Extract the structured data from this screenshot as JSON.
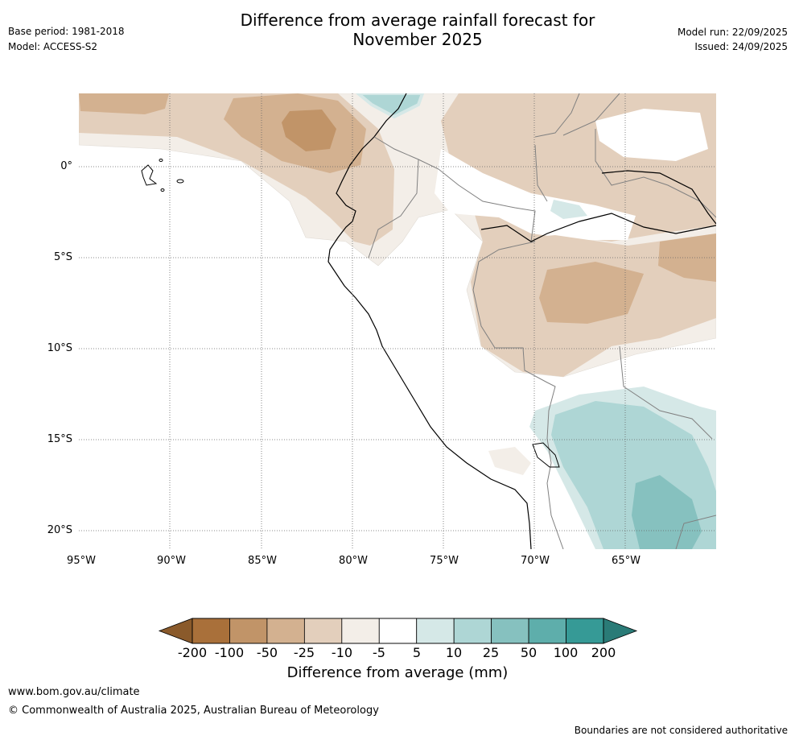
{
  "header": {
    "base_period": "Base period: 1981-2018",
    "model": "Model: ACCESS-S2",
    "title_line1": "Difference from average rainfall forecast for",
    "title_line2": "November 2025",
    "model_run": "Model run: 22/09/2025",
    "issued": "Issued: 24/09/2025"
  },
  "map": {
    "x_ticks": [
      "95°W",
      "90°W",
      "85°W",
      "80°W",
      "75°W",
      "70°W",
      "65°W"
    ],
    "y_ticks": [
      "0°",
      "5°S",
      "10°S",
      "15°S",
      "20°S"
    ],
    "extent": {
      "lon_min": -95,
      "lon_max": -60,
      "lat_min": -21,
      "lat_max": 4
    }
  },
  "legend": {
    "title": "Difference from average (mm)",
    "bounds": [
      "-200",
      "-100",
      "-50",
      "-25",
      "-10",
      "-5",
      "5",
      "10",
      "25",
      "50",
      "100",
      "200"
    ],
    "colors": [
      "#a9703a",
      "#c19468",
      "#d3b190",
      "#e3cfbc",
      "#f3eee8",
      "#ffffff",
      "#d5e8e7",
      "#aed6d5",
      "#86c1bf",
      "#5eaeab",
      "#369a96"
    ],
    "under_color": "#8a5a2b",
    "over_color": "#2a7b77"
  },
  "footer": {
    "url": "www.bom.gov.au/climate",
    "copyright": "© Commonwealth of Australia 2025, Australian Bureau of Meteorology",
    "disclaimer": "Boundaries are not considered authoritative"
  }
}
